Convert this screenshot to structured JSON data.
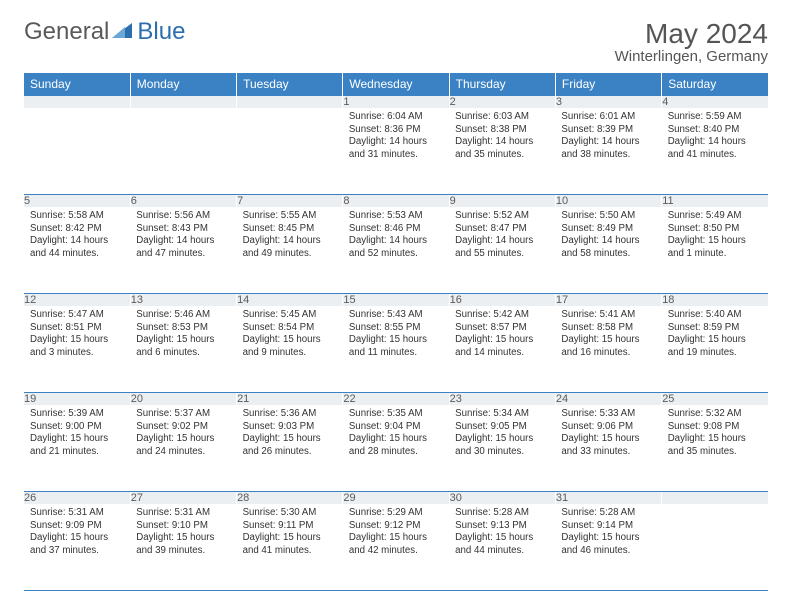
{
  "brand": {
    "part1": "General",
    "part2": "Blue"
  },
  "title": "May 2024",
  "location": "Winterlingen, Germany",
  "colors": {
    "header_bg": "#3b82c4",
    "header_fg": "#ffffff",
    "daynum_bg": "#eceff2",
    "text": "#333333",
    "rule": "#3b82c4",
    "logo_gray": "#5a5a5a",
    "logo_blue": "#2b6fae"
  },
  "day_headers": [
    "Sunday",
    "Monday",
    "Tuesday",
    "Wednesday",
    "Thursday",
    "Friday",
    "Saturday"
  ],
  "weeks": [
    [
      {
        "n": "",
        "lines": []
      },
      {
        "n": "",
        "lines": []
      },
      {
        "n": "",
        "lines": []
      },
      {
        "n": "1",
        "lines": [
          "Sunrise: 6:04 AM",
          "Sunset: 8:36 PM",
          "Daylight: 14 hours",
          "and 31 minutes."
        ]
      },
      {
        "n": "2",
        "lines": [
          "Sunrise: 6:03 AM",
          "Sunset: 8:38 PM",
          "Daylight: 14 hours",
          "and 35 minutes."
        ]
      },
      {
        "n": "3",
        "lines": [
          "Sunrise: 6:01 AM",
          "Sunset: 8:39 PM",
          "Daylight: 14 hours",
          "and 38 minutes."
        ]
      },
      {
        "n": "4",
        "lines": [
          "Sunrise: 5:59 AM",
          "Sunset: 8:40 PM",
          "Daylight: 14 hours",
          "and 41 minutes."
        ]
      }
    ],
    [
      {
        "n": "5",
        "lines": [
          "Sunrise: 5:58 AM",
          "Sunset: 8:42 PM",
          "Daylight: 14 hours",
          "and 44 minutes."
        ]
      },
      {
        "n": "6",
        "lines": [
          "Sunrise: 5:56 AM",
          "Sunset: 8:43 PM",
          "Daylight: 14 hours",
          "and 47 minutes."
        ]
      },
      {
        "n": "7",
        "lines": [
          "Sunrise: 5:55 AM",
          "Sunset: 8:45 PM",
          "Daylight: 14 hours",
          "and 49 minutes."
        ]
      },
      {
        "n": "8",
        "lines": [
          "Sunrise: 5:53 AM",
          "Sunset: 8:46 PM",
          "Daylight: 14 hours",
          "and 52 minutes."
        ]
      },
      {
        "n": "9",
        "lines": [
          "Sunrise: 5:52 AM",
          "Sunset: 8:47 PM",
          "Daylight: 14 hours",
          "and 55 minutes."
        ]
      },
      {
        "n": "10",
        "lines": [
          "Sunrise: 5:50 AM",
          "Sunset: 8:49 PM",
          "Daylight: 14 hours",
          "and 58 minutes."
        ]
      },
      {
        "n": "11",
        "lines": [
          "Sunrise: 5:49 AM",
          "Sunset: 8:50 PM",
          "Daylight: 15 hours",
          "and 1 minute."
        ]
      }
    ],
    [
      {
        "n": "12",
        "lines": [
          "Sunrise: 5:47 AM",
          "Sunset: 8:51 PM",
          "Daylight: 15 hours",
          "and 3 minutes."
        ]
      },
      {
        "n": "13",
        "lines": [
          "Sunrise: 5:46 AM",
          "Sunset: 8:53 PM",
          "Daylight: 15 hours",
          "and 6 minutes."
        ]
      },
      {
        "n": "14",
        "lines": [
          "Sunrise: 5:45 AM",
          "Sunset: 8:54 PM",
          "Daylight: 15 hours",
          "and 9 minutes."
        ]
      },
      {
        "n": "15",
        "lines": [
          "Sunrise: 5:43 AM",
          "Sunset: 8:55 PM",
          "Daylight: 15 hours",
          "and 11 minutes."
        ]
      },
      {
        "n": "16",
        "lines": [
          "Sunrise: 5:42 AM",
          "Sunset: 8:57 PM",
          "Daylight: 15 hours",
          "and 14 minutes."
        ]
      },
      {
        "n": "17",
        "lines": [
          "Sunrise: 5:41 AM",
          "Sunset: 8:58 PM",
          "Daylight: 15 hours",
          "and 16 minutes."
        ]
      },
      {
        "n": "18",
        "lines": [
          "Sunrise: 5:40 AM",
          "Sunset: 8:59 PM",
          "Daylight: 15 hours",
          "and 19 minutes."
        ]
      }
    ],
    [
      {
        "n": "19",
        "lines": [
          "Sunrise: 5:39 AM",
          "Sunset: 9:00 PM",
          "Daylight: 15 hours",
          "and 21 minutes."
        ]
      },
      {
        "n": "20",
        "lines": [
          "Sunrise: 5:37 AM",
          "Sunset: 9:02 PM",
          "Daylight: 15 hours",
          "and 24 minutes."
        ]
      },
      {
        "n": "21",
        "lines": [
          "Sunrise: 5:36 AM",
          "Sunset: 9:03 PM",
          "Daylight: 15 hours",
          "and 26 minutes."
        ]
      },
      {
        "n": "22",
        "lines": [
          "Sunrise: 5:35 AM",
          "Sunset: 9:04 PM",
          "Daylight: 15 hours",
          "and 28 minutes."
        ]
      },
      {
        "n": "23",
        "lines": [
          "Sunrise: 5:34 AM",
          "Sunset: 9:05 PM",
          "Daylight: 15 hours",
          "and 30 minutes."
        ]
      },
      {
        "n": "24",
        "lines": [
          "Sunrise: 5:33 AM",
          "Sunset: 9:06 PM",
          "Daylight: 15 hours",
          "and 33 minutes."
        ]
      },
      {
        "n": "25",
        "lines": [
          "Sunrise: 5:32 AM",
          "Sunset: 9:08 PM",
          "Daylight: 15 hours",
          "and 35 minutes."
        ]
      }
    ],
    [
      {
        "n": "26",
        "lines": [
          "Sunrise: 5:31 AM",
          "Sunset: 9:09 PM",
          "Daylight: 15 hours",
          "and 37 minutes."
        ]
      },
      {
        "n": "27",
        "lines": [
          "Sunrise: 5:31 AM",
          "Sunset: 9:10 PM",
          "Daylight: 15 hours",
          "and 39 minutes."
        ]
      },
      {
        "n": "28",
        "lines": [
          "Sunrise: 5:30 AM",
          "Sunset: 9:11 PM",
          "Daylight: 15 hours",
          "and 41 minutes."
        ]
      },
      {
        "n": "29",
        "lines": [
          "Sunrise: 5:29 AM",
          "Sunset: 9:12 PM",
          "Daylight: 15 hours",
          "and 42 minutes."
        ]
      },
      {
        "n": "30",
        "lines": [
          "Sunrise: 5:28 AM",
          "Sunset: 9:13 PM",
          "Daylight: 15 hours",
          "and 44 minutes."
        ]
      },
      {
        "n": "31",
        "lines": [
          "Sunrise: 5:28 AM",
          "Sunset: 9:14 PM",
          "Daylight: 15 hours",
          "and 46 minutes."
        ]
      },
      {
        "n": "",
        "lines": []
      }
    ]
  ]
}
